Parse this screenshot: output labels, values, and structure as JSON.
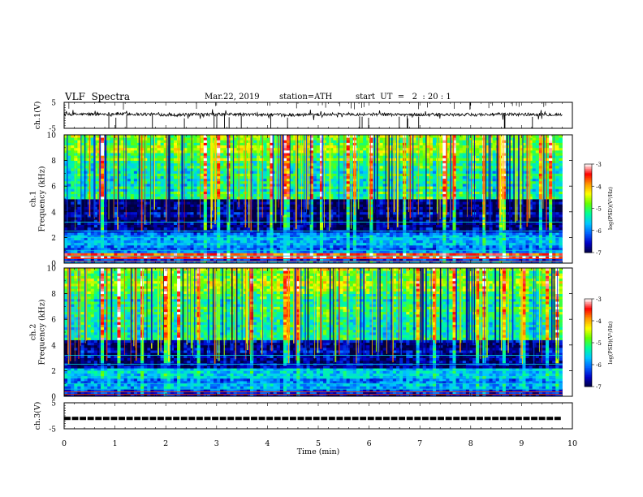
{
  "header": {
    "title": "VLF  Spectra",
    "date": "Mar.22, 2019",
    "station": "station=ATH",
    "start": "start  UT  =   2  : 20 : 1"
  },
  "chart_data": [
    {
      "type": "line",
      "ylabel": "ch.1(V)",
      "ylim": [
        -5,
        5
      ],
      "yticks": [
        "5",
        "-5"
      ],
      "series": [
        {
          "values_summary": [
            0.3,
            0.6,
            0.2,
            0.4,
            0.1,
            0.5,
            0.3,
            0.2,
            0.4,
            0.3
          ]
        }
      ]
    },
    {
      "type": "heatmap",
      "ylabel": "ch.1\nFrequency (kHz)",
      "ylim": [
        0,
        10
      ],
      "yticks": [
        "0",
        "2",
        "4",
        "6",
        "8",
        "10"
      ],
      "band_levels": [
        {
          "freq": [
            0,
            0.4
          ],
          "level": -6.2
        },
        {
          "freq": [
            0.4,
            0.8
          ],
          "level": -3.5
        },
        {
          "freq": [
            0.8,
            2.5
          ],
          "level": -6.0
        },
        {
          "freq": [
            2.5,
            5
          ],
          "level": -6.8
        },
        {
          "freq": [
            5,
            8
          ],
          "level": -5.3
        },
        {
          "freq": [
            8,
            10
          ],
          "level": -4.8
        }
      ],
      "colorbar": {
        "label": "log(PSD)(V²/Hz)",
        "range": [
          -7,
          -3
        ],
        "ticks": [
          "-3",
          "-4",
          "-5",
          "-6",
          "-7"
        ]
      }
    },
    {
      "type": "heatmap",
      "ylabel": "ch.2\nFrequency (kHz)",
      "ylim": [
        0,
        10
      ],
      "yticks": [
        "0",
        "2",
        "4",
        "6",
        "8",
        "10"
      ],
      "band_levels": [
        {
          "freq": [
            0,
            0.6
          ],
          "level": -6.5
        },
        {
          "freq": [
            0.6,
            2.2
          ],
          "level": -5.8
        },
        {
          "freq": [
            2.2,
            4.5
          ],
          "level": -6.7
        },
        {
          "freq": [
            4.5,
            8
          ],
          "level": -5.2
        },
        {
          "freq": [
            8,
            10
          ],
          "level": -4.8
        }
      ],
      "colorbar": {
        "label": "log(PSD)(V²/Hz)",
        "range": [
          -7,
          -3
        ],
        "ticks": [
          "-3",
          "-4",
          "-5",
          "-6",
          "-7"
        ]
      }
    },
    {
      "type": "line",
      "ylabel": "ch.3(V)",
      "ylim": [
        -5,
        5
      ],
      "yticks": [
        "5",
        "-5"
      ],
      "series": [
        {
          "values_summary": [
            -1,
            -1,
            -1,
            -1,
            -1,
            -1,
            -1,
            -1,
            -1,
            -1
          ]
        }
      ]
    }
  ],
  "xaxis": {
    "label": "Time  (min)",
    "xlim": [
      0,
      10
    ],
    "ticks": [
      "0",
      "1",
      "2",
      "3",
      "4",
      "5",
      "6",
      "7",
      "8",
      "9",
      "10"
    ],
    "data_end": 9.8
  },
  "colors": {
    "colormap": [
      "#000040",
      "#0000c8",
      "#0064ff",
      "#00c8ff",
      "#00ff96",
      "#64ff00",
      "#ffff00",
      "#ff9600",
      "#ff0000",
      "#ffffff"
    ]
  }
}
